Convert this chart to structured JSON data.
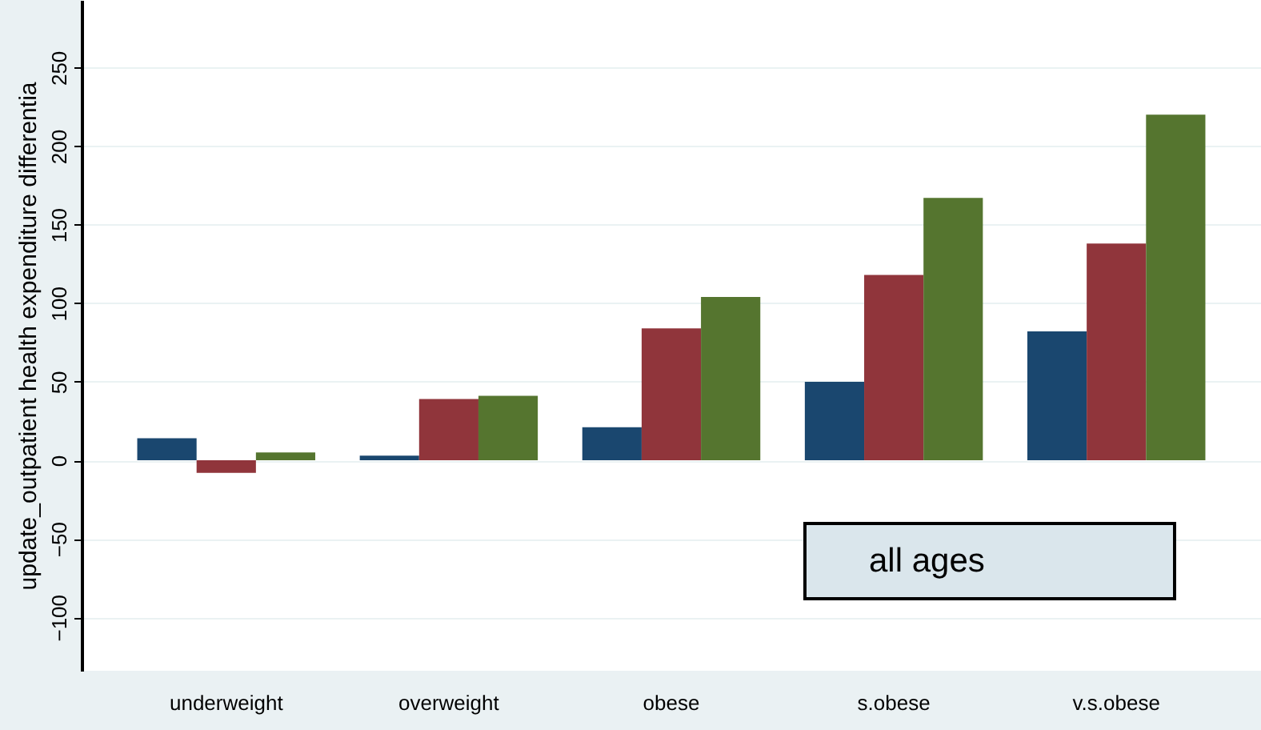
{
  "chart_data": {
    "type": "bar",
    "ylabel": "update_outpatient health expenditure differentia",
    "categories": [
      "underweight",
      "overweight",
      "obese",
      "s.obese",
      "v.s.obese"
    ],
    "series": [
      {
        "color": "#1a476f",
        "values": [
          14,
          3,
          21,
          50,
          82
        ]
      },
      {
        "color": "#90353b",
        "values": [
          -8,
          39,
          84,
          118,
          138
        ]
      },
      {
        "color": "#55752f",
        "values": [
          5,
          41,
          104,
          167,
          220
        ]
      }
    ],
    "ylim": [
      -134,
      293
    ],
    "yticks": [
      -100,
      -50,
      0,
      50,
      100,
      150,
      200,
      250
    ],
    "grid": "y",
    "annotations": [
      "all ages"
    ]
  }
}
